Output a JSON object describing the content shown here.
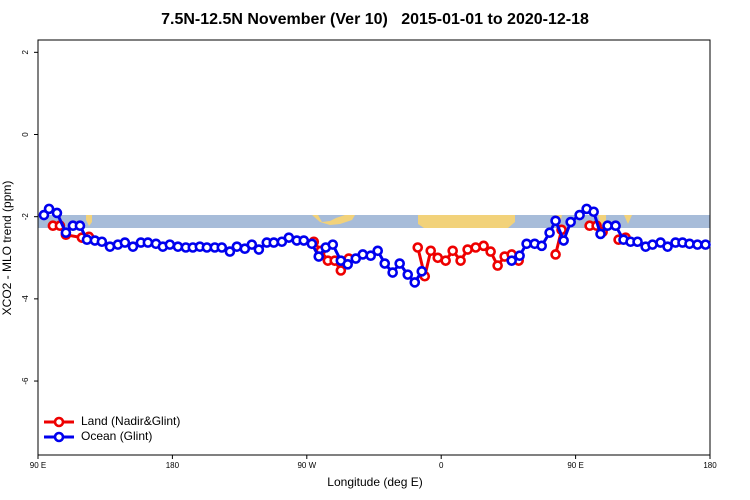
{
  "chart_data": {
    "type": "line",
    "title": "7.5N-12.5N November (Ver 10)   2015-01-01 to 2020-12-18",
    "x_label": "Longitude (deg E)",
    "y_label": "XCO2 - MLO trend (ppm)",
    "xlim": [
      90,
      540
    ],
    "ylim": [
      -7.8,
      2.3
    ],
    "xticks": [
      {
        "value": 90,
        "label": "90 E"
      },
      180,
      {
        "value": 270,
        "label": "90 W"
      },
      {
        "value": 360,
        "label": "0"
      },
      {
        "value": 450,
        "label": "90 E"
      },
      {
        "value": 540,
        "label": "180"
      }
    ],
    "yticks": [
      2,
      0,
      -2,
      -4,
      -6
    ],
    "legend": "bottomleft",
    "series": [
      {
        "name": "Land (Nadir&Glint)",
        "color": "#ee0000",
        "x": [
          100.0,
          104.7,
          108.7,
          119.4,
          124.1,
          null,
          274.7,
          279.4,
          284.1,
          288.7,
          292.8,
          298.1,
          null,
          344.3,
          349.0,
          353.0,
          357.7,
          363.0,
          367.7,
          373.0,
          377.7,
          383.1,
          388.4,
          393.1,
          397.8,
          402.5,
          407.2,
          411.9,
          null,
          436.6,
          440.6,
          null,
          459.4,
          464.1,
          468.1,
          null,
          478.8,
          483.5
        ],
        "values": [
          -2.22,
          -2.22,
          -2.44,
          -2.51,
          -2.49,
          null,
          -2.61,
          -2.83,
          -3.07,
          -3.07,
          -3.31,
          -3.02,
          null,
          -2.75,
          -3.45,
          -2.83,
          -3.0,
          -3.07,
          -2.83,
          -3.07,
          -2.8,
          -2.75,
          -2.71,
          -2.85,
          -3.19,
          -2.97,
          -2.92,
          -3.07,
          null,
          -2.92,
          -2.32,
          null,
          -2.22,
          -2.22,
          -2.37,
          null,
          -2.56,
          -2.51
        ]
      },
      {
        "name": "Ocean (Glint)",
        "color": "#0000ee",
        "x": [
          94.0,
          97.4,
          102.7,
          108.7,
          113.4,
          118.1,
          122.8,
          128.1,
          132.8,
          138.2,
          143.5,
          148.2,
          153.6,
          158.9,
          163.6,
          169.0,
          173.6,
          178.3,
          183.7,
          189.0,
          193.7,
          198.4,
          203.1,
          208.4,
          213.1,
          218.5,
          223.2,
          228.5,
          233.2,
          237.9,
          243.2,
          247.9,
          253.3,
          258.0,
          263.3,
          268.0,
          273.4,
          278.0,
          282.7,
          287.4,
          292.8,
          297.4,
          302.8,
          307.5,
          312.8,
          317.5,
          322.2,
          327.5,
          332.2,
          337.6,
          342.3,
          347.0,
          null,
          407.2,
          412.5,
          417.2,
          422.6,
          427.3,
          432.6,
          436.6,
          442.0,
          446.7,
          452.7,
          457.4,
          462.1,
          466.7,
          471.4,
          476.8,
          482.1,
          486.8,
          491.5,
          496.9,
          501.5,
          506.9,
          511.6,
          516.9,
          521.6,
          526.3,
          531.6,
          537.0
        ],
        "values": [
          -1.96,
          -1.81,
          -1.91,
          -2.39,
          -2.22,
          -2.22,
          -2.56,
          -2.58,
          -2.61,
          -2.73,
          -2.68,
          -2.63,
          -2.73,
          -2.63,
          -2.63,
          -2.66,
          -2.73,
          -2.68,
          -2.73,
          -2.75,
          -2.75,
          -2.73,
          -2.75,
          -2.75,
          -2.75,
          -2.85,
          -2.73,
          -2.78,
          -2.68,
          -2.8,
          -2.63,
          -2.63,
          -2.61,
          -2.51,
          -2.58,
          -2.58,
          -2.66,
          -2.97,
          -2.75,
          -2.68,
          -3.07,
          -3.16,
          -3.02,
          -2.92,
          -2.95,
          -2.83,
          -3.14,
          -3.36,
          -3.14,
          -3.41,
          -3.6,
          -3.33,
          null,
          -3.07,
          -2.95,
          -2.66,
          -2.66,
          -2.71,
          -2.39,
          -2.1,
          -2.58,
          -2.13,
          -1.96,
          -1.81,
          -1.88,
          -2.42,
          -2.22,
          -2.22,
          -2.56,
          -2.61,
          -2.61,
          -2.73,
          -2.68,
          -2.63,
          -2.73,
          -2.63,
          -2.63,
          -2.66,
          -2.68,
          -2.68
        ]
      }
    ]
  }
}
